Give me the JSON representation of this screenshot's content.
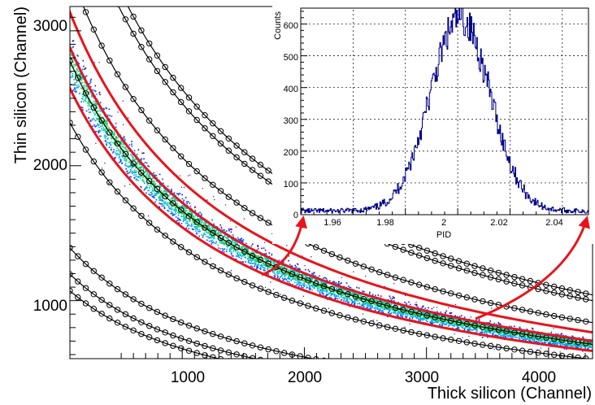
{
  "chart_data": [
    {
      "type": "heatmap",
      "xlabel": "Thick silicon (Channel)",
      "ylabel": "Thin silicon (Channel)",
      "xlim": [
        80,
        4360
      ],
      "ylim": [
        570,
        3180
      ],
      "xticks": [
        "1000",
        "2000",
        "3000",
        "4000"
      ],
      "xtick_values": [
        1000,
        2000,
        3000,
        4000
      ],
      "yticks": [
        "1000",
        "2000",
        "3000"
      ],
      "ytick_values": [
        1000,
        2000,
        3000
      ],
      "model": "PI curves: y = A / (x + B), B = 1300",
      "band_center_A": 3830000,
      "band_halfwidth_fraction": 0.09,
      "cut_lines": {
        "color": "#e8141b",
        "A_values": [
          4330000,
          3970000,
          3550000
        ]
      },
      "guide_curves": {
        "color": "#000000",
        "marker": "open-circle",
        "A_values": [
          1920000,
          1650000,
          1480000,
          3200000,
          3830000,
          4740000,
          5660000,
          5900000
        ]
      },
      "colors": [
        "#2a00b8",
        "#0047ff",
        "#00a6ff",
        "#00d4a0",
        "#2ec84a"
      ]
    },
    {
      "type": "histogram",
      "xlabel": "PID",
      "ylabel": "Counts",
      "xlim": [
        1.94,
        2.05
      ],
      "ylim": [
        0,
        650
      ],
      "xticks": [
        "1.96",
        "1.98",
        "2",
        "2.02",
        "2.04"
      ],
      "xtick_values": [
        1.96,
        1.98,
        2.0,
        2.02,
        2.04
      ],
      "yticks": [
        "0",
        "100",
        "200",
        "300",
        "400",
        "500",
        "600"
      ],
      "ytick_values": [
        0,
        100,
        200,
        300,
        400,
        500,
        600
      ],
      "mean": 2.001,
      "sigma": 0.0115,
      "peak_counts": 605,
      "baseline_counts": 12,
      "line_color": "#00008b"
    }
  ]
}
